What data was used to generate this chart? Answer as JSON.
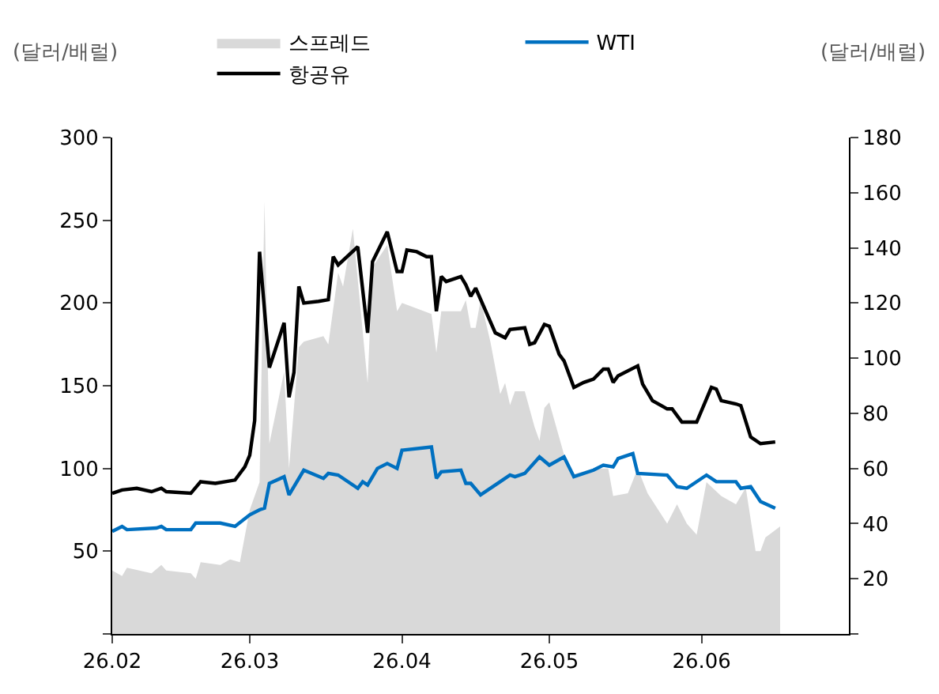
{
  "chart_data": {
    "type": "line",
    "ylabel": "(달러/배럴)",
    "y2label": "(달러/배럴)",
    "xlim": [
      "--02-01",
      "--07-01"
    ],
    "xticks": [
      {
        "value": "--02-01",
        "label": "26.02"
      },
      {
        "value": "--03-01",
        "label": "26.03"
      },
      {
        "value": "--04-01",
        "label": "26.04"
      },
      {
        "value": "--05-01",
        "label": "26.05"
      },
      {
        "value": "--06-01",
        "label": "26.06"
      }
    ],
    "ylim": [
      0,
      300
    ],
    "yticks": [
      {
        "value": 0,
        "label": null
      },
      50,
      100,
      150,
      200,
      250,
      300
    ],
    "y2lim": [
      0,
      180
    ],
    "y2ticks": [
      {
        "value": 0,
        "label": null
      },
      20,
      40,
      60,
      80,
      100,
      120,
      140,
      160,
      180
    ],
    "legend": "top",
    "series": [
      {
        "name": "스프레드",
        "type": "area",
        "axis": "y2",
        "color": "#d9d9d9",
        "x": [
          "--02-01",
          "--02-03",
          "--02-04",
          "--02-09",
          "--02-11",
          "--02-12",
          "--02-17",
          "--02-18",
          "--02-19",
          "--02-23",
          "--02-25",
          "--02-27",
          "--03-01",
          "--03-03",
          "--03-04",
          "--03-05",
          "--03-08",
          "--03-09",
          "--03-11",
          "--03-12",
          "--03-16",
          "--03-17",
          "--03-19",
          "--03-20",
          "--03-22",
          "--03-25",
          "--03-26",
          "--03-29",
          "--03-31",
          "--04-01",
          "--04-04",
          "--04-07",
          "--04-08",
          "--04-09",
          "--04-13",
          "--04-14",
          "--04-15",
          "--04-16",
          "--04-17",
          "--04-19",
          "--04-21",
          "--04-22",
          "--04-23",
          "--04-24",
          "--04-26",
          "--04-28",
          "--04-29",
          "--04-30",
          "--05-01",
          "--05-04",
          "--05-06",
          "--05-08",
          "--05-10",
          "--05-13",
          "--05-14",
          "--05-17",
          "--05-19",
          "--05-21",
          "--05-25",
          "--05-27",
          "--05-29",
          "--05-31",
          "--06-02",
          "--06-05",
          "--06-08",
          "--06-10",
          "--06-12",
          "--06-13",
          "--06-14",
          "--06-17"
        ],
        "values": [
          23,
          21,
          24,
          22,
          25,
          23,
          22,
          20,
          26,
          25,
          27,
          26,
          45,
          55,
          157,
          69,
          95,
          60,
          104,
          106,
          108,
          105,
          131,
          126,
          147,
          91,
          133,
          141,
          117,
          120,
          118,
          116,
          102,
          117,
          117,
          121,
          111,
          111,
          121,
          106,
          87,
          91,
          83,
          88,
          88,
          75,
          70,
          82,
          84,
          65,
          58,
          59,
          60,
          60,
          50,
          51,
          60,
          51,
          40,
          47,
          40,
          36,
          55,
          50,
          47,
          53,
          30,
          30,
          35,
          39
        ]
      },
      {
        "name": "WTI",
        "color": "#0070c0",
        "x": [
          "--02-01",
          "--02-03",
          "--02-04",
          "--02-10",
          "--02-11",
          "--02-12",
          "--02-17",
          "--02-18",
          "--02-23",
          "--02-26",
          "--03-01",
          "--03-03",
          "--03-04",
          "--03-05",
          "--03-08",
          "--03-09",
          "--03-12",
          "--03-16",
          "--03-17",
          "--03-19",
          "--03-23",
          "--03-24",
          "--03-25",
          "--03-27",
          "--03-29",
          "--03-31",
          "--04-01",
          "--04-07",
          "--04-08",
          "--04-09",
          "--04-13",
          "--04-14",
          "--04-15",
          "--04-17",
          "--04-21",
          "--04-23",
          "--04-24",
          "--04-26",
          "--04-29",
          "--05-01",
          "--05-04",
          "--05-06",
          "--05-10",
          "--05-12",
          "--05-14",
          "--05-15",
          "--05-18",
          "--05-19",
          "--05-25",
          "--05-27",
          "--05-29",
          "--06-02",
          "--06-04",
          "--06-08",
          "--06-09",
          "--06-11",
          "--06-13",
          "--06-16"
        ],
        "values": [
          62,
          65,
          63,
          64,
          65,
          63,
          63,
          67,
          67,
          65,
          72,
          75,
          76,
          91,
          95,
          84,
          99,
          94,
          97,
          96,
          88,
          92,
          90,
          100,
          103,
          100,
          111,
          113,
          94,
          98,
          99,
          91,
          91,
          84,
          92,
          96,
          95,
          97,
          107,
          102,
          107,
          95,
          99,
          102,
          101,
          106,
          109,
          97,
          96,
          89,
          88,
          96,
          92,
          92,
          88,
          89,
          80,
          76
        ]
      },
      {
        "name": "항공유",
        "color": "#000000",
        "x": [
          "--02-01",
          "--02-03",
          "--02-06",
          "--02-09",
          "--02-11",
          "--02-12",
          "--02-17",
          "--02-19",
          "--02-22",
          "--02-26",
          "--02-28",
          "--03-01",
          "--03-02",
          "--03-03",
          "--03-05",
          "--03-08",
          "--03-09",
          "--03-10",
          "--03-11",
          "--03-12",
          "--03-15",
          "--03-17",
          "--03-18",
          "--03-19",
          "--03-23",
          "--03-25",
          "--03-26",
          "--03-29",
          "--03-31",
          "--04-01",
          "--04-02",
          "--04-04",
          "--04-06",
          "--04-07",
          "--04-08",
          "--04-09",
          "--04-10",
          "--04-13",
          "--04-14",
          "--04-15",
          "--04-16",
          "--04-20",
          "--04-22",
          "--04-23",
          "--04-26",
          "--04-27",
          "--04-28",
          "--04-30",
          "--05-01",
          "--05-03",
          "--05-04",
          "--05-06",
          "--05-08",
          "--05-10",
          "--05-12",
          "--05-13",
          "--05-14",
          "--05-15",
          "--05-19",
          "--05-20",
          "--05-22",
          "--05-25",
          "--05-26",
          "--05-28",
          "--05-31",
          "--06-03",
          "--06-04",
          "--06-05",
          "--06-08",
          "--06-09",
          "--06-11",
          "--06-13",
          "--06-16"
        ],
        "values": [
          85,
          87,
          88,
          86,
          88,
          86,
          85,
          92,
          91,
          93,
          101,
          108,
          129,
          231,
          161,
          188,
          143,
          158,
          210,
          200,
          201,
          202,
          228,
          223,
          234,
          182,
          225,
          243,
          219,
          219,
          232,
          231,
          228,
          228,
          195,
          216,
          213,
          216,
          211,
          204,
          209,
          182,
          179,
          184,
          185,
          175,
          176,
          187,
          186,
          169,
          165,
          149,
          152,
          154,
          160,
          160,
          152,
          156,
          162,
          151,
          141,
          136,
          136,
          128,
          128,
          149,
          148,
          141,
          139,
          138,
          119,
          115,
          116
        ]
      }
    ]
  }
}
